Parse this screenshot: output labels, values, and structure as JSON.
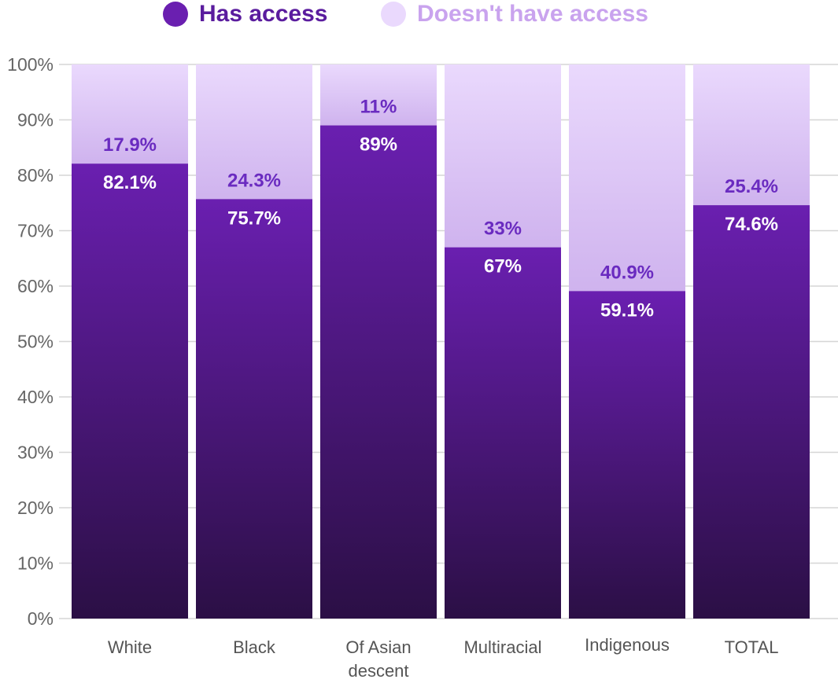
{
  "colors": {
    "has_access_top": "#6a1fb0",
    "has_access_bottom": "#2b0f45",
    "no_access_top": "#ead9fd",
    "no_access_bottom": "#cfb3ee",
    "has_access_label_outside": "#6a2bc0",
    "no_access_legend_text": "#c9a3ee",
    "has_access_legend_text": "#5a1c9e",
    "grid": "#d6d6d6",
    "axis_text": "#666666"
  },
  "legend": {
    "has_access": "Has access",
    "no_access": "Doesn't have access"
  },
  "chart_data": {
    "type": "bar",
    "stacked": true,
    "categories": [
      "White",
      "Black",
      "Of Asian descent",
      "Multiracial",
      "Indigenous",
      "TOTAL"
    ],
    "category_lines": [
      [
        "White"
      ],
      [
        "Black"
      ],
      [
        "Of Asian",
        "descent"
      ],
      [
        "Multiracial"
      ],
      [
        "Indigenous"
      ],
      [
        "TOTAL"
      ]
    ],
    "series": [
      {
        "name": "Has access",
        "values": [
          82.1,
          75.7,
          89,
          67,
          59.1,
          74.6
        ],
        "labels": [
          "82.1%",
          "75.7%",
          "89%",
          "67%",
          "59.1%",
          "74.6%"
        ]
      },
      {
        "name": "Doesn't have access",
        "values": [
          17.9,
          24.3,
          11,
          33,
          40.9,
          25.4
        ],
        "labels": [
          "17.9%",
          "24.3%",
          "11%",
          "33%",
          "40.9%",
          "25.4%"
        ]
      }
    ],
    "yticks": [
      "0%",
      "10%",
      "20%",
      "30%",
      "40%",
      "50%",
      "60%",
      "70%",
      "80%",
      "90%",
      "100%"
    ],
    "ylim": [
      0,
      100
    ],
    "grid": true,
    "legend_position": "top"
  }
}
